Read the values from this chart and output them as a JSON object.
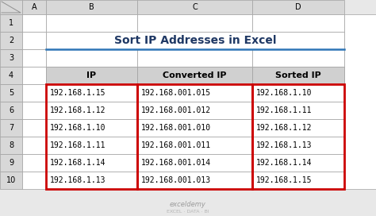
{
  "title": "Sort IP Addresses in Excel",
  "col_headers": [
    "IP",
    "Converted IP",
    "Sorted IP"
  ],
  "ip_col": [
    "192.168.1.15",
    "192.168.1.12",
    "192.168.1.10",
    "192.168.1.11",
    "192.168.1.14",
    "192.168.1.13"
  ],
  "converted_col": [
    "192.168.001.015",
    "192.168.001.012",
    "192.168.001.010",
    "192.168.001.011",
    "192.168.001.014",
    "192.168.001.013"
  ],
  "sorted_col": [
    "192.168.1.10",
    "192.168.1.11",
    "192.168.1.12",
    "192.168.1.13",
    "192.168.1.14",
    "192.168.1.15"
  ],
  "excel_col_labels": [
    "A",
    "B",
    "C",
    "D"
  ],
  "excel_row_labels": [
    "1",
    "2",
    "3",
    "4",
    "5",
    "6",
    "7",
    "8",
    "9",
    "10"
  ],
  "bg_color": "#e8e8e8",
  "header_bg": "#d0d0d0",
  "cell_bg": "#ffffff",
  "red_border": "#cc0000",
  "title_color": "#1f3864",
  "text_color": "#000000",
  "arrow_color": "#cc0000",
  "grid_line_color": "#a0a0a0",
  "excel_header_bg": "#d8d8d8",
  "title_line_color": "#2e75b6",
  "watermark1": "exceldemy",
  "watermark2": "EXCEL · DATA · BI"
}
